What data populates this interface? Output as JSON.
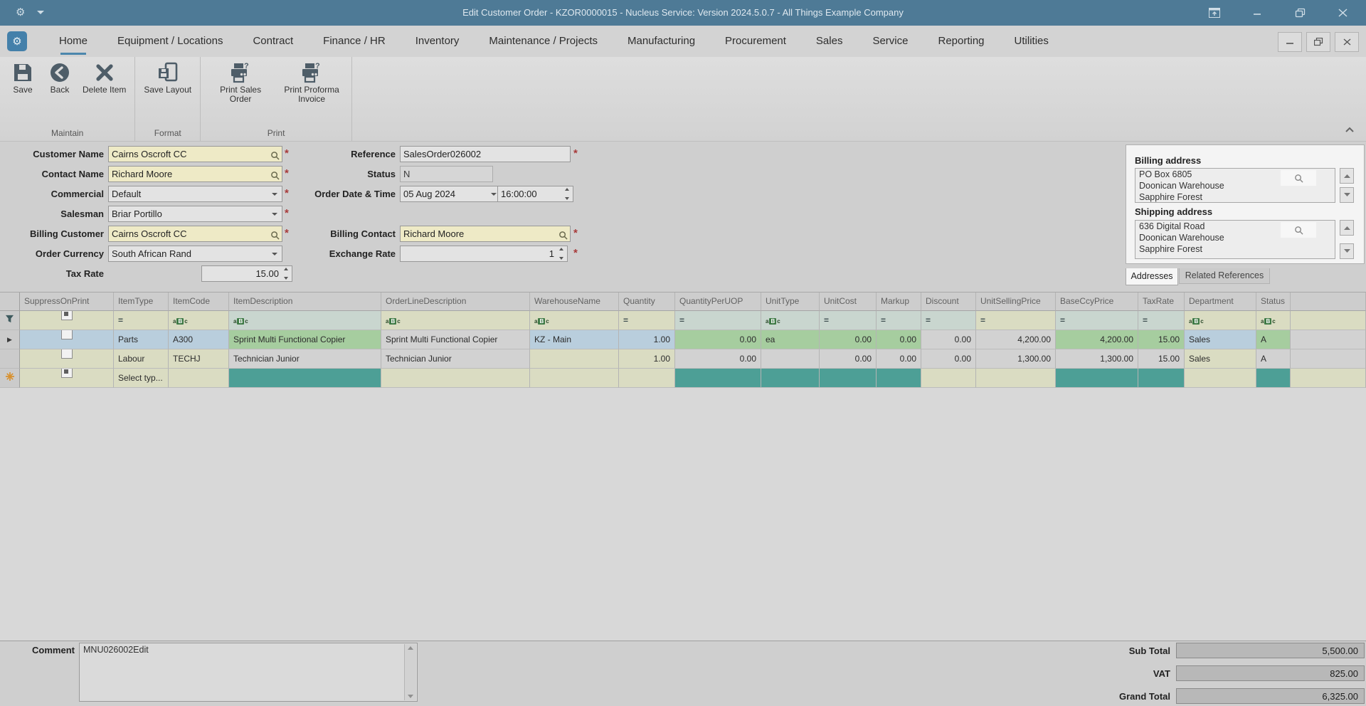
{
  "window": {
    "title": "Edit Customer Order - KZOR0000015 - Nucleus Service: Version 2024.5.0.7 - All Things Example Company"
  },
  "ribbon": {
    "tabs": [
      {
        "label": "Home",
        "active": true
      },
      {
        "label": "Equipment / Locations"
      },
      {
        "label": "Contract"
      },
      {
        "label": "Finance / HR"
      },
      {
        "label": "Inventory"
      },
      {
        "label": "Maintenance / Projects"
      },
      {
        "label": "Manufacturing"
      },
      {
        "label": "Procurement"
      },
      {
        "label": "Sales"
      },
      {
        "label": "Service"
      },
      {
        "label": "Reporting"
      },
      {
        "label": "Utilities"
      }
    ],
    "groups": [
      {
        "name": "Maintain",
        "buttons": [
          {
            "label": "Save",
            "icon": "save"
          },
          {
            "label": "Back",
            "icon": "back"
          },
          {
            "label": "Delete Item",
            "icon": "delete"
          }
        ]
      },
      {
        "name": "Format",
        "buttons": [
          {
            "label": "Save Layout",
            "icon": "save-layout"
          }
        ]
      },
      {
        "name": "Print",
        "buttons": [
          {
            "label": "Print Sales Order",
            "icon": "print"
          },
          {
            "label": "Print Proforma Invoice",
            "icon": "print"
          }
        ]
      }
    ]
  },
  "form": {
    "customer_name": {
      "label": "Customer Name",
      "value": "Cairns Oscroft CC"
    },
    "contact_name": {
      "label": "Contact Name",
      "value": "Richard Moore"
    },
    "commercial": {
      "label": "Commercial",
      "value": "Default"
    },
    "salesman": {
      "label": "Salesman",
      "value": "Briar Portillo"
    },
    "billing_customer": {
      "label": "Billing Customer",
      "value": "Cairns Oscroft CC"
    },
    "order_currency": {
      "label": "Order Currency",
      "value": "South African Rand"
    },
    "tax_rate": {
      "label": "Tax Rate",
      "value": "15.00"
    },
    "reference": {
      "label": "Reference",
      "value": "SalesOrder026002"
    },
    "status": {
      "label": "Status",
      "value": "N"
    },
    "order_date_time": {
      "label": "Order Date & Time",
      "date": "05 Aug 2024",
      "time": "16:00:00"
    },
    "billing_contact": {
      "label": "Billing Contact",
      "value": "Richard Moore"
    },
    "exchange_rate": {
      "label": "Exchange Rate",
      "value": "1"
    }
  },
  "addresses": {
    "billing": {
      "title": "Billing address",
      "lines": [
        "PO Box 6805",
        "Doonican Warehouse",
        "Sapphire Forest"
      ]
    },
    "shipping": {
      "title": "Shipping address",
      "lines": [
        "636 Digital Road",
        "Doonican Warehouse",
        "Sapphire Forest"
      ]
    },
    "tabs": {
      "addresses": "Addresses",
      "related_references": "Related References"
    }
  },
  "grid": {
    "columns": [
      {
        "label": "SuppressOnPrint",
        "filter": "checkbox"
      },
      {
        "label": "ItemType",
        "filter": "equals"
      },
      {
        "label": "ItemCode",
        "filter": "abc"
      },
      {
        "label": "ItemDescription",
        "filter": "abc"
      },
      {
        "label": "OrderLineDescription",
        "filter": "abc"
      },
      {
        "label": "WarehouseName",
        "filter": "abc"
      },
      {
        "label": "Quantity",
        "filter": "equals",
        "align": "right"
      },
      {
        "label": "QuantityPerUOP",
        "filter": "equals",
        "align": "right"
      },
      {
        "label": "UnitType",
        "filter": "abc"
      },
      {
        "label": "UnitCost",
        "filter": "equals",
        "align": "right"
      },
      {
        "label": "Markup",
        "filter": "equals",
        "align": "right"
      },
      {
        "label": "Discount",
        "filter": "equals",
        "align": "right"
      },
      {
        "label": "UnitSellingPrice",
        "filter": "equals",
        "align": "right"
      },
      {
        "label": "BaseCcyPrice",
        "filter": "equals",
        "align": "right"
      },
      {
        "label": "TaxRate",
        "filter": "equals",
        "align": "right"
      },
      {
        "label": "Department",
        "filter": "abc"
      },
      {
        "label": "Status",
        "filter": "abc"
      }
    ],
    "filter_row": {
      "colors": [
        "beige",
        "beige",
        "beige",
        "fteal",
        "beige",
        "beige",
        "beige",
        "fteal",
        "fteal",
        "fteal",
        "fteal",
        "fteal",
        "beige",
        "fteal",
        "fteal",
        "beige",
        "beige"
      ]
    },
    "rows": [
      {
        "indicator": "arrow-icon",
        "checkbox": "unchecked",
        "selected": true,
        "cells": [
          "",
          "Parts",
          "A300",
          "Sprint Multi Functional Copier",
          "Sprint Multi Functional Copier",
          "KZ - Main",
          "1.00",
          "0.00",
          "ea",
          "0.00",
          "0.00",
          "0.00",
          "4,200.00",
          "4,200.00",
          "15.00",
          "Sales",
          "A"
        ],
        "cell_colors": [
          "sel",
          "sel",
          "sel",
          "green",
          "gray",
          "sel",
          "sel",
          "green",
          "green",
          "green",
          "green",
          "gray",
          "gray",
          "green",
          "green",
          "sel",
          "green"
        ],
        "filler": "gray"
      },
      {
        "indicator": "",
        "checkbox": "unchecked",
        "cells": [
          "",
          "Labour",
          "TECHJ",
          "Technician Junior",
          "Technician Junior",
          "",
          "1.00",
          "0.00",
          "",
          "0.00",
          "0.00",
          "0.00",
          "1,300.00",
          "1,300.00",
          "15.00",
          "Sales",
          "A"
        ],
        "cell_colors": [
          "beige",
          "beige",
          "beige",
          "gray",
          "gray",
          "beige",
          "beige",
          "gray",
          "gray",
          "gray",
          "gray",
          "gray",
          "gray",
          "gray",
          "gray",
          "beige",
          "gray"
        ],
        "filler": "gray"
      },
      {
        "indicator": "new-row-icon",
        "checkbox": "indeterminate",
        "cells": [
          "",
          "Select typ...",
          "",
          "",
          "",
          "",
          "",
          "",
          "",
          "",
          "",
          "",
          "",
          "",
          "",
          "",
          ""
        ],
        "cell_colors": [
          "beige",
          "beige",
          "beige",
          "teal",
          "beige",
          "beige",
          "beige",
          "teal",
          "teal",
          "teal",
          "teal",
          "beige",
          "beige",
          "teal",
          "teal",
          "beige",
          "teal"
        ],
        "filler": "beige"
      }
    ]
  },
  "comment": {
    "label": "Comment",
    "value": "MNU026002Edit"
  },
  "totals": [
    {
      "label": "Sub Total",
      "value": "5,500.00"
    },
    {
      "label": "VAT",
      "value": "825.00"
    },
    {
      "label": "Grand Total",
      "value": "6,325.00"
    }
  ],
  "colors": {
    "titlebar": "#4e7a96",
    "accent_underline": "#4c87ad",
    "app_icon": "#4480aa",
    "field_yellow": "#eeeac6",
    "cell_green": "#a6cd9f",
    "cell_teal": "#4d9f96",
    "cell_selected_blue": "#b9cedd",
    "cell_beige": "#dadcc2",
    "cell_gray": "#d2d2d2",
    "required_asterisk": "#a83a3a",
    "new_row_star": "#d8912f"
  }
}
